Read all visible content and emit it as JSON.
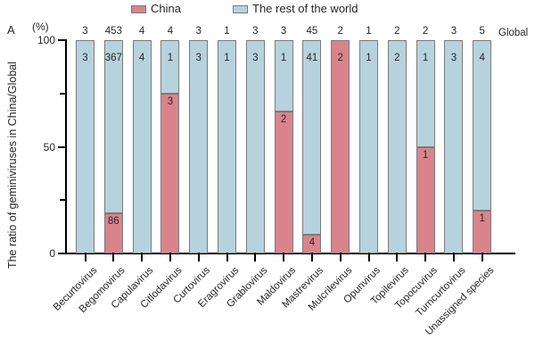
{
  "panel_label": "A",
  "global_label": "Global",
  "legend": [
    {
      "label": "China",
      "color": "#d9848c"
    },
    {
      "label": "The rest of the world",
      "color": "#b6d3dd"
    }
  ],
  "colors": {
    "china": "#d9848c",
    "rest_of_world": "#b6d3dd",
    "bar_border": "#7a7a7a",
    "axis": "#000000",
    "text": "#262626"
  },
  "chart_data": {
    "type": "bar",
    "stacked": true,
    "normalized_to_percent": true,
    "title": "",
    "xlabel": "",
    "ylabel": "The ratio of geminiviruses in China/Global",
    "yunit": "(%)",
    "ylim": [
      0,
      100
    ],
    "yticks": [
      0,
      50,
      100
    ],
    "ytick_labels": [
      "0",
      "50",
      "100"
    ],
    "yticks_minor": [
      25,
      75
    ],
    "legend_position": "top",
    "grid": false,
    "categories": [
      "Becurtovirus",
      "Begomovirus",
      "Capulavirus",
      "Citlodavirus",
      "Curtovirus",
      "Eragrovirus",
      "Grablovirus",
      "Maldovirus",
      "Mastrevirus",
      "Mulcrilevirus",
      "Opunvirus",
      "Topilevirus",
      "Topocuvirus",
      "Turncurtovirus",
      "Unassigned species"
    ],
    "series": [
      {
        "name": "China",
        "color": "#d9848c",
        "values": [
          0,
          86,
          0,
          3,
          0,
          0,
          0,
          2,
          4,
          2,
          0,
          0,
          1,
          0,
          1
        ]
      },
      {
        "name": "The rest of the world",
        "color": "#b6d3dd",
        "values": [
          3,
          367,
          4,
          1,
          3,
          1,
          3,
          1,
          41,
          0,
          1,
          2,
          1,
          3,
          4
        ]
      }
    ],
    "totals_above_bars": [
      3,
      453,
      4,
      4,
      3,
      1,
      3,
      3,
      45,
      2,
      1,
      2,
      2,
      3,
      5
    ]
  }
}
